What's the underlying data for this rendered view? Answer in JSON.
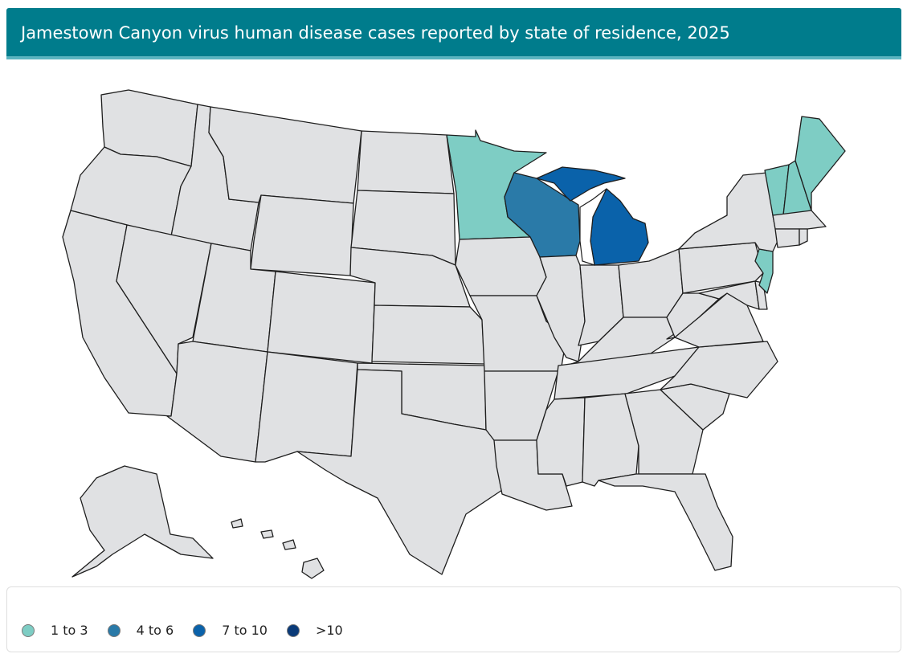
{
  "header": {
    "title": "Jamestown Canyon virus human disease cases reported by state of residence, 2025"
  },
  "colors": {
    "header_bg": "#007c8c",
    "no_cases": "#e0e1e3",
    "bin_1_3": "#7ecdc4",
    "bin_4_6": "#2a7aa8",
    "bin_7_10": "#0a62aa",
    "bin_gt10": "#0a3a78"
  },
  "legend": {
    "items": [
      {
        "label": "1 to 3",
        "color": "#7ecdc4"
      },
      {
        "label": "4 to 6",
        "color": "#2a7aa8"
      },
      {
        "label": "7 to 10",
        "color": "#0a62aa"
      },
      {
        "label": ">10",
        "color": "#0a3a78"
      }
    ]
  },
  "map": {
    "highlighted_states": [
      {
        "state": "Minnesota",
        "bin": "1 to 3",
        "color": "#7ecdc4"
      },
      {
        "state": "Vermont",
        "bin": "1 to 3",
        "color": "#7ecdc4"
      },
      {
        "state": "New Hampshire",
        "bin": "1 to 3",
        "color": "#7ecdc4"
      },
      {
        "state": "Maine",
        "bin": "1 to 3",
        "color": "#7ecdc4"
      },
      {
        "state": "New Jersey",
        "bin": "1 to 3",
        "color": "#7ecdc4"
      },
      {
        "state": "Wisconsin",
        "bin": "4 to 6",
        "color": "#2a7aa8"
      },
      {
        "state": "Michigan",
        "bin": "7 to 10",
        "color": "#0a62aa"
      }
    ]
  }
}
